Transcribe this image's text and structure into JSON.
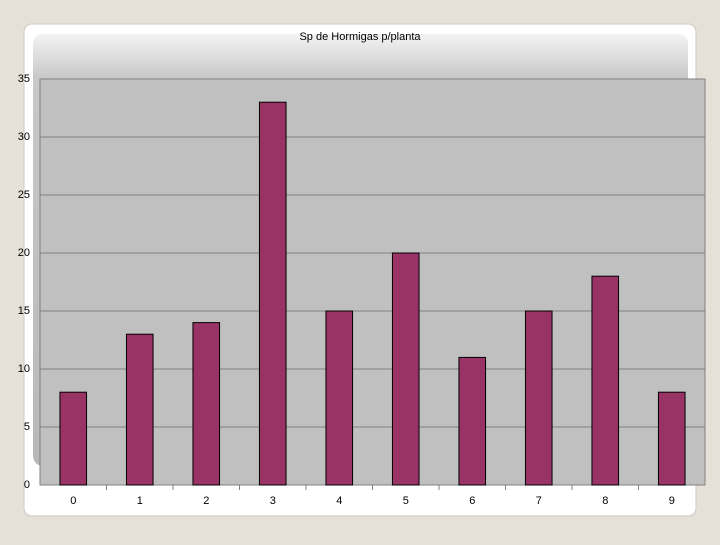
{
  "chart_data": {
    "type": "bar",
    "title": "Sp de Hormigas p/planta",
    "categories": [
      "0",
      "1",
      "2",
      "3",
      "4",
      "5",
      "6",
      "7",
      "8",
      "9"
    ],
    "values": [
      8,
      13,
      14,
      33,
      15,
      20,
      11,
      15,
      18,
      8
    ],
    "color": "#993366",
    "ylim": [
      0,
      35
    ],
    "yticks": [
      0,
      5,
      10,
      15,
      20,
      25,
      30,
      35
    ],
    "grid": true
  }
}
